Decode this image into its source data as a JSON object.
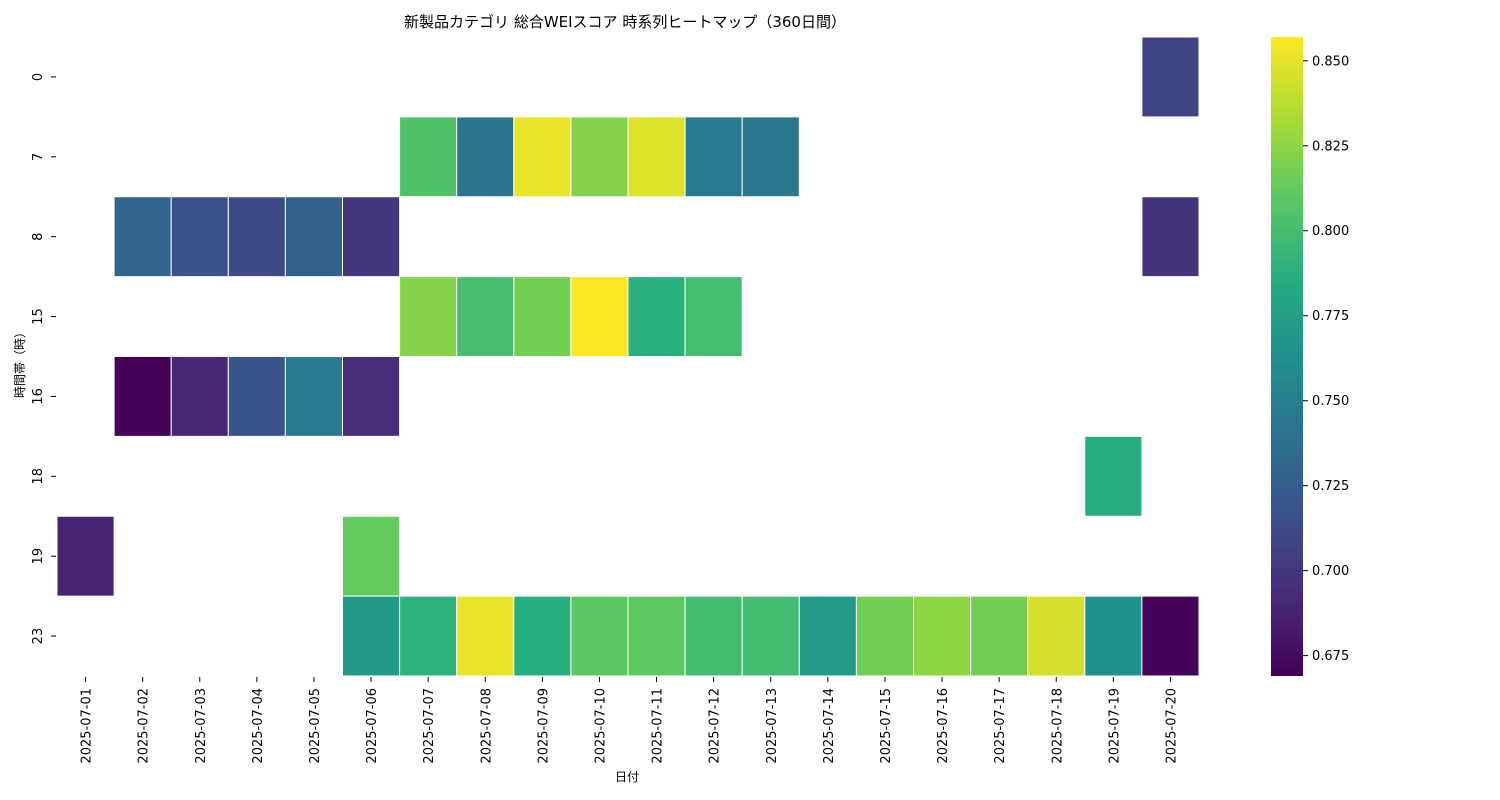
{
  "chart_data": {
    "type": "heatmap",
    "title": "新製品カテゴリ 総合WEIスコア 時系列ヒートマップ（360日間）",
    "xlabel": "日付",
    "ylabel": "時間帯（時）",
    "x_categories": [
      "2025-07-01",
      "2025-07-02",
      "2025-07-03",
      "2025-07-04",
      "2025-07-05",
      "2025-07-06",
      "2025-07-07",
      "2025-07-08",
      "2025-07-09",
      "2025-07-10",
      "2025-07-11",
      "2025-07-12",
      "2025-07-13",
      "2025-07-14",
      "2025-07-15",
      "2025-07-16",
      "2025-07-17",
      "2025-07-18",
      "2025-07-19",
      "2025-07-20"
    ],
    "y_categories": [
      "0",
      "7",
      "8",
      "15",
      "16",
      "18",
      "19",
      "23"
    ],
    "values": [
      [
        null,
        null,
        null,
        null,
        null,
        null,
        null,
        null,
        null,
        null,
        null,
        null,
        null,
        null,
        null,
        null,
        null,
        null,
        null,
        0.708
      ],
      [
        null,
        null,
        null,
        null,
        null,
        null,
        0.805,
        0.742,
        0.851,
        0.822,
        0.848,
        0.746,
        0.745,
        null,
        null,
        null,
        null,
        null,
        null,
        null
      ],
      [
        null,
        0.731,
        0.716,
        0.713,
        0.727,
        0.699,
        null,
        null,
        null,
        null,
        null,
        null,
        null,
        null,
        null,
        null,
        null,
        null,
        null,
        0.697
      ],
      [
        null,
        null,
        null,
        null,
        null,
        null,
        0.822,
        0.801,
        0.817,
        0.857,
        0.788,
        0.8,
        null,
        null,
        null,
        null,
        null,
        null,
        null,
        null
      ],
      [
        null,
        0.67,
        0.69,
        0.718,
        0.747,
        0.693,
        null,
        null,
        null,
        null,
        null,
        null,
        null,
        null,
        null,
        null,
        null,
        null,
        null,
        null
      ],
      [
        null,
        null,
        null,
        null,
        null,
        null,
        null,
        null,
        null,
        null,
        null,
        null,
        null,
        null,
        null,
        null,
        null,
        null,
        0.786,
        null
      ],
      [
        0.688,
        null,
        null,
        null,
        null,
        0.813,
        null,
        null,
        null,
        null,
        null,
        null,
        null,
        null,
        null,
        null,
        null,
        null,
        null,
        null
      ],
      [
        null,
        null,
        null,
        null,
        null,
        0.77,
        0.79,
        0.851,
        0.787,
        0.81,
        0.811,
        0.799,
        0.799,
        0.772,
        0.816,
        0.825,
        0.817,
        0.845,
        0.765,
        0.67
      ]
    ],
    "colormap": "viridis",
    "vmin": 0.669,
    "vmax": 0.857,
    "colorbar_ticks": [
      0.675,
      0.7,
      0.725,
      0.75,
      0.775,
      0.8,
      0.825,
      0.85
    ],
    "colorbar_tick_labels": [
      "0.675",
      "0.700",
      "0.725",
      "0.750",
      "0.775",
      "0.800",
      "0.825",
      "0.850"
    ],
    "grid": false,
    "legend": "colorbar-right"
  }
}
